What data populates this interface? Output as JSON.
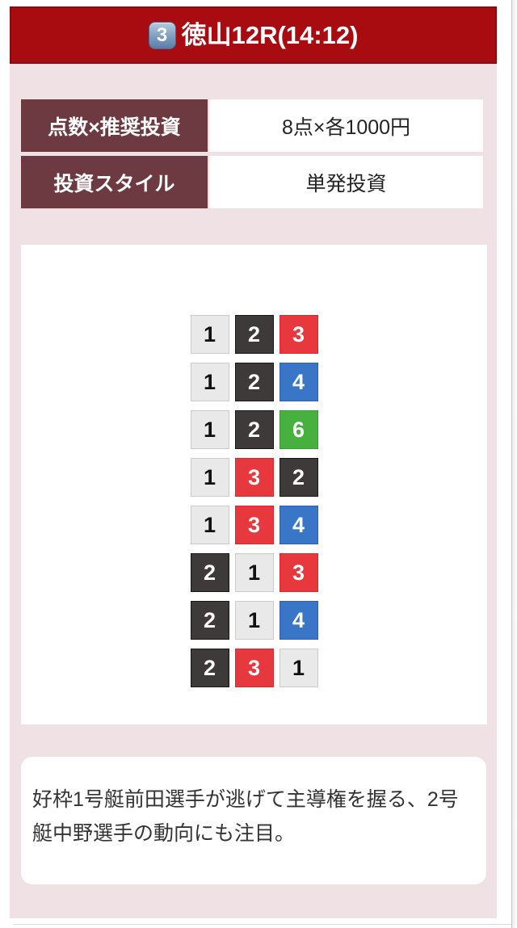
{
  "header": {
    "race_number_badge": "3",
    "title": "徳山12R(14:12)"
  },
  "info_table": {
    "rows": [
      {
        "label": "点数×推奨投資",
        "value": "8点×各1000円"
      },
      {
        "label": "投資スタイル",
        "value": "単発投資"
      }
    ]
  },
  "bets": {
    "combinations": [
      [
        1,
        2,
        3
      ],
      [
        1,
        2,
        4
      ],
      [
        1,
        2,
        6
      ],
      [
        1,
        3,
        2
      ],
      [
        1,
        3,
        4
      ],
      [
        2,
        1,
        3
      ],
      [
        2,
        1,
        4
      ],
      [
        2,
        3,
        1
      ]
    ]
  },
  "comment": {
    "text": "好枠1号艇前田選手が逃げて主導権を握る、2号艇中野選手の動向にも注目。"
  },
  "boat_colors": {
    "1": {
      "bg": "#e9e9e9",
      "text": "#111111",
      "border": "#cbcbcb"
    },
    "2": {
      "bg": "#3e3a39",
      "text": "#ffffff",
      "border": "#191715"
    },
    "3": {
      "bg": "#e7383d",
      "text": "#ffffff",
      "border": "#d02c31"
    },
    "4": {
      "bg": "#3a76c7",
      "text": "#ffffff",
      "border": "#2d63ae"
    },
    "6": {
      "bg": "#46b13e",
      "text": "#ffffff",
      "border": "#3a9a34"
    }
  },
  "colors": {
    "header_bg": "#a90c10",
    "header_border": "#850d10",
    "page_pink": "#efe1e4",
    "label_bg": "#6d3a42",
    "comment_text": "#333333"
  }
}
